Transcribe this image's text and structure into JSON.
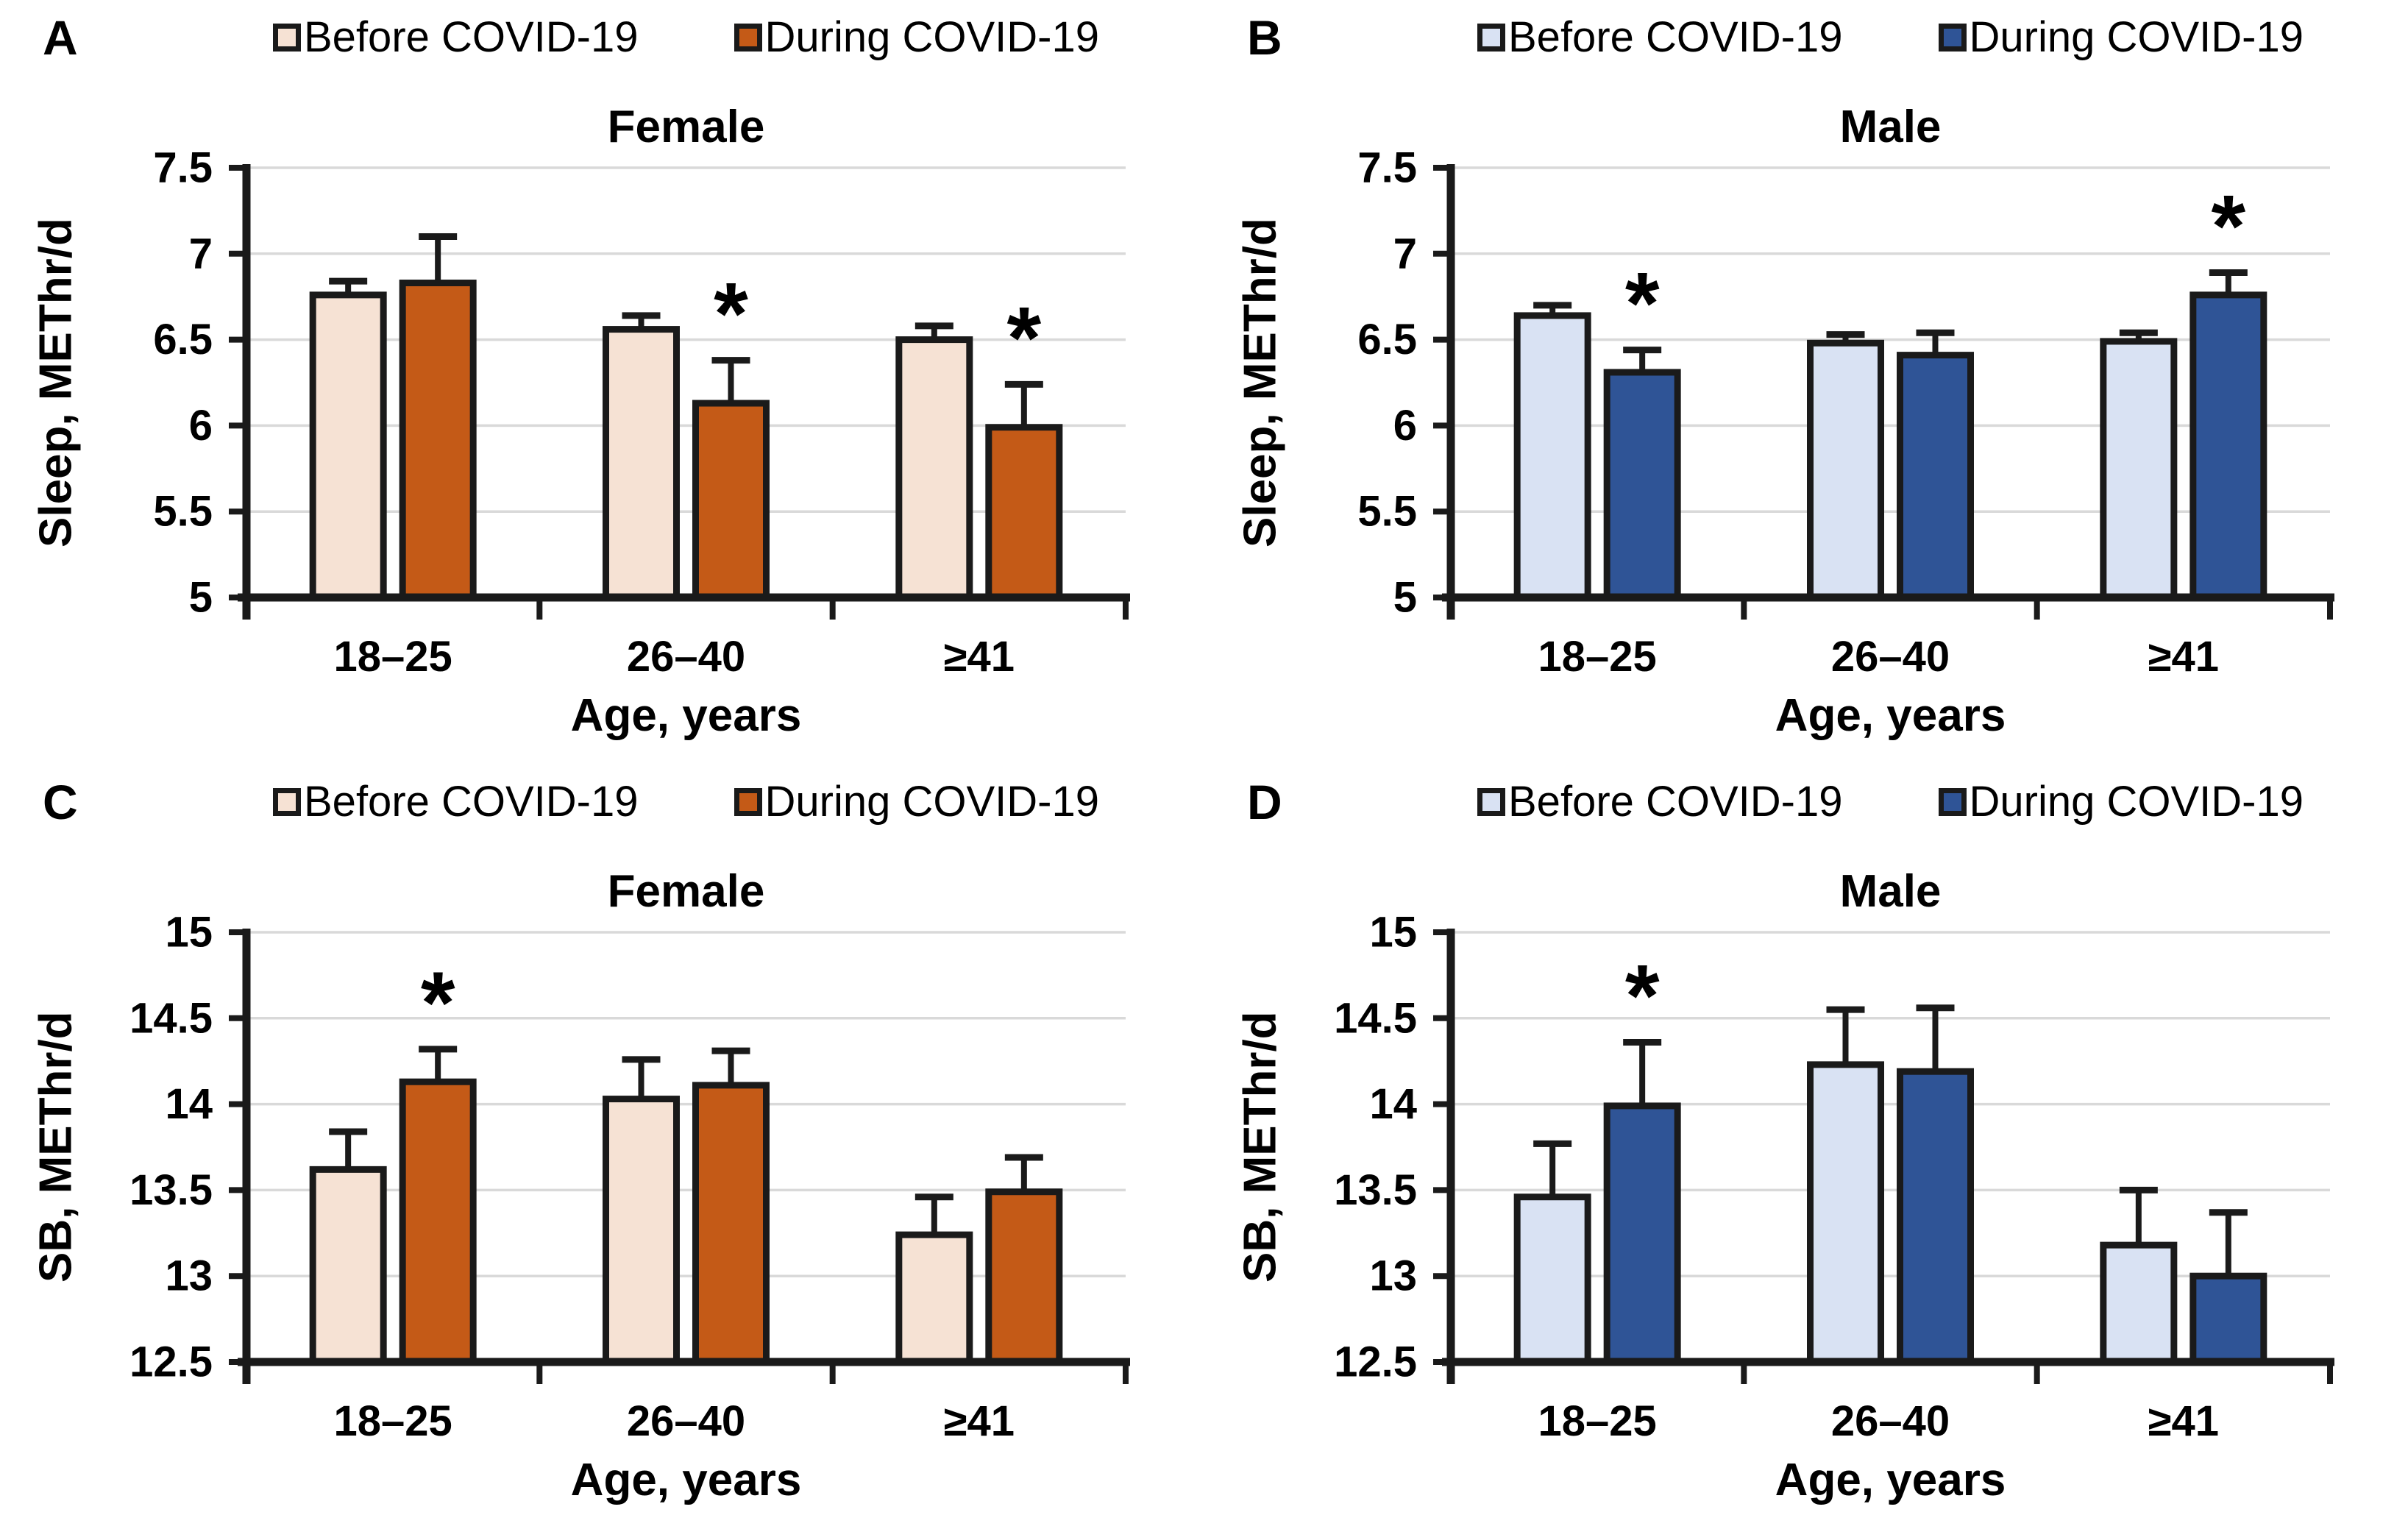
{
  "style": {
    "grid_color": "#D9D9D9",
    "axis_color": "#1A1A1A",
    "text_color": "#000000",
    "significance_marker": "*"
  },
  "chart_data": [
    {
      "panel": "A",
      "type": "bar",
      "title": "Female",
      "ylabel": "Sleep, METhr/d",
      "xlabel": "Age, years",
      "categories": [
        "18–25",
        "26–40",
        "≥41"
      ],
      "ylim": [
        5,
        7.5
      ],
      "ytick_step": 0.5,
      "grid": true,
      "legend_position": "top",
      "colors": {
        "before": "#F6E2D4",
        "during": "#C45A17"
      },
      "series": [
        {
          "name": "Before COVID-19",
          "values": [
            6.76,
            6.56,
            6.5
          ],
          "errors": [
            0.08,
            0.08,
            0.08
          ],
          "significant": [
            false,
            false,
            false
          ]
        },
        {
          "name": "During COVID-19",
          "values": [
            6.83,
            6.13,
            5.99
          ],
          "errors": [
            0.27,
            0.25,
            0.25
          ],
          "significant": [
            false,
            true,
            true
          ]
        }
      ]
    },
    {
      "panel": "B",
      "type": "bar",
      "title": "Male",
      "ylabel": "Sleep, METhr/d",
      "xlabel": "Age, years",
      "categories": [
        "18–25",
        "26–40",
        "≥41"
      ],
      "ylim": [
        5,
        7.5
      ],
      "ytick_step": 0.5,
      "grid": true,
      "legend_position": "top",
      "colors": {
        "before": "#D9E2F3",
        "during": "#2F5496"
      },
      "series": [
        {
          "name": "Before COVID-19",
          "values": [
            6.64,
            6.48,
            6.49
          ],
          "errors": [
            0.06,
            0.05,
            0.05
          ],
          "significant": [
            false,
            false,
            false
          ]
        },
        {
          "name": "During COVID-19",
          "values": [
            6.31,
            6.41,
            6.76
          ],
          "errors": [
            0.13,
            0.13,
            0.13
          ],
          "significant": [
            true,
            false,
            true
          ]
        }
      ]
    },
    {
      "panel": "C",
      "type": "bar",
      "title": "Female",
      "ylabel": "SB, METhr/d",
      "xlabel": "Age, years",
      "categories": [
        "18–25",
        "26–40",
        "≥41"
      ],
      "ylim": [
        12.5,
        15
      ],
      "ytick_step": 0.5,
      "grid": true,
      "legend_position": "top",
      "colors": {
        "before": "#F6E2D4",
        "during": "#C45A17"
      },
      "series": [
        {
          "name": "Before COVID-19",
          "values": [
            13.62,
            14.03,
            13.24
          ],
          "errors": [
            0.22,
            0.23,
            0.22
          ],
          "significant": [
            false,
            false,
            false
          ]
        },
        {
          "name": "During COVID-19",
          "values": [
            14.13,
            14.11,
            13.49
          ],
          "errors": [
            0.19,
            0.2,
            0.2
          ],
          "significant": [
            true,
            false,
            false
          ]
        }
      ]
    },
    {
      "panel": "D",
      "type": "bar",
      "title": "Male",
      "ylabel": "SB, METhr/d",
      "xlabel": "Age, years",
      "categories": [
        "18–25",
        "26–40",
        "≥41"
      ],
      "ylim": [
        12.5,
        15
      ],
      "ytick_step": 0.5,
      "grid": true,
      "legend_position": "top",
      "colors": {
        "before": "#D9E2F3",
        "during": "#2F5496"
      },
      "series": [
        {
          "name": "Before COVID-19",
          "values": [
            13.46,
            14.23,
            13.18
          ],
          "errors": [
            0.31,
            0.32,
            0.32
          ],
          "significant": [
            false,
            false,
            false
          ]
        },
        {
          "name": "During COVID-19",
          "values": [
            13.99,
            14.19,
            13.0
          ],
          "errors": [
            0.37,
            0.37,
            0.37
          ],
          "significant": [
            true,
            false,
            false
          ]
        }
      ]
    }
  ]
}
